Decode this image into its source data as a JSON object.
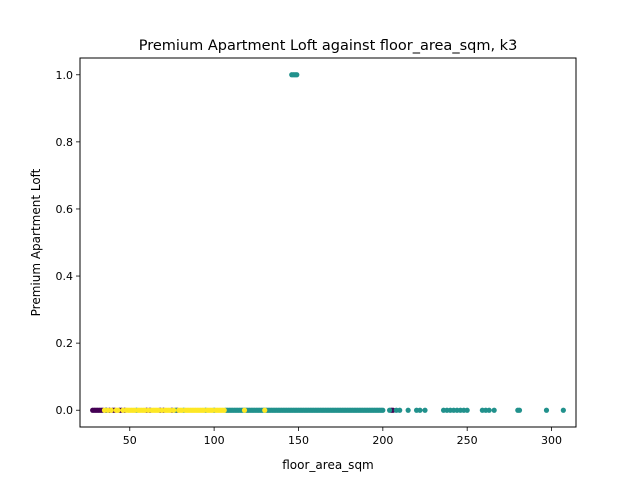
{
  "chart_data": {
    "type": "scatter",
    "title": "Premium Apartment Loft against floor_area_sqm, k3",
    "xlabel": "floor_area_sqm",
    "ylabel": "Premium Apartment Loft",
    "xlim": [
      20.5,
      314.5
    ],
    "ylim": [
      -0.05,
      1.05
    ],
    "x_ticks": [
      50,
      100,
      150,
      200,
      250,
      300
    ],
    "y_ticks": [
      0.0,
      0.2,
      0.4,
      0.6,
      0.8,
      1.0
    ],
    "x_tick_labels": [
      "50",
      "100",
      "150",
      "200",
      "250",
      "300"
    ],
    "y_tick_labels": [
      "0.0",
      "0.2",
      "0.4",
      "0.6",
      "0.8",
      "1.0"
    ],
    "grid": false,
    "legend": "none",
    "clusters": [
      {
        "color": "#440154",
        "points": [
          [
            28,
            0
          ],
          [
            29,
            0
          ],
          [
            30,
            0
          ],
          [
            31,
            0
          ],
          [
            32,
            0
          ],
          [
            33,
            0
          ],
          [
            34,
            0
          ],
          [
            36,
            0
          ],
          [
            38,
            0
          ],
          [
            40,
            0
          ],
          [
            41,
            0
          ],
          [
            44,
            0
          ],
          [
            45,
            0
          ],
          [
            47,
            0
          ],
          [
            60,
            0
          ],
          [
            62,
            0
          ],
          [
            68,
            0
          ],
          [
            70,
            0
          ],
          [
            75,
            0
          ],
          [
            78,
            0
          ],
          [
            205,
            0
          ],
          [
            206,
            0
          ]
        ]
      },
      {
        "color": "#21918c",
        "points": [
          [
            36,
            0
          ],
          [
            54,
            0
          ],
          [
            77,
            0
          ],
          [
            82,
            0
          ],
          [
            95,
            0
          ],
          [
            100,
            0
          ],
          [
            107,
            0
          ],
          [
            108,
            0
          ],
          [
            109,
            0
          ],
          [
            110,
            0
          ],
          [
            111,
            0
          ],
          [
            112,
            0
          ],
          [
            113,
            0
          ],
          [
            114,
            0
          ],
          [
            115,
            0
          ],
          [
            116,
            0
          ],
          [
            117,
            0
          ],
          [
            118,
            0
          ],
          [
            119,
            0
          ],
          [
            120,
            0
          ],
          [
            121,
            0
          ],
          [
            122,
            0
          ],
          [
            123,
            0
          ],
          [
            124,
            0
          ],
          [
            125,
            0
          ],
          [
            126,
            0
          ],
          [
            127,
            0
          ],
          [
            128,
            0
          ],
          [
            129,
            0
          ],
          [
            130,
            0
          ],
          [
            131,
            0
          ],
          [
            132,
            0
          ],
          [
            133,
            0
          ],
          [
            134,
            0
          ],
          [
            135,
            0
          ],
          [
            136,
            0
          ],
          [
            137,
            0
          ],
          [
            138,
            0
          ],
          [
            139,
            0
          ],
          [
            140,
            0
          ],
          [
            141,
            0
          ],
          [
            142,
            0
          ],
          [
            143,
            0
          ],
          [
            144,
            0
          ],
          [
            145,
            0
          ],
          [
            146,
            0
          ],
          [
            147,
            0
          ],
          [
            148,
            0
          ],
          [
            149,
            0
          ],
          [
            150,
            0
          ],
          [
            151,
            0
          ],
          [
            152,
            0
          ],
          [
            153,
            0
          ],
          [
            154,
            0
          ],
          [
            155,
            0
          ],
          [
            156,
            0
          ],
          [
            157,
            0
          ],
          [
            158,
            0
          ],
          [
            159,
            0
          ],
          [
            160,
            0
          ],
          [
            161,
            0
          ],
          [
            162,
            0
          ],
          [
            163,
            0
          ],
          [
            164,
            0
          ],
          [
            165,
            0
          ],
          [
            166,
            0
          ],
          [
            167,
            0
          ],
          [
            168,
            0
          ],
          [
            169,
            0
          ],
          [
            170,
            0
          ],
          [
            171,
            0
          ],
          [
            172,
            0
          ],
          [
            173,
            0
          ],
          [
            174,
            0
          ],
          [
            175,
            0
          ],
          [
            176,
            0
          ],
          [
            177,
            0
          ],
          [
            178,
            0
          ],
          [
            179,
            0
          ],
          [
            180,
            0
          ],
          [
            181,
            0
          ],
          [
            182,
            0
          ],
          [
            183,
            0
          ],
          [
            184,
            0
          ],
          [
            185,
            0
          ],
          [
            186,
            0
          ],
          [
            187,
            0
          ],
          [
            188,
            0
          ],
          [
            189,
            0
          ],
          [
            190,
            0
          ],
          [
            191,
            0
          ],
          [
            192,
            0
          ],
          [
            193,
            0
          ],
          [
            194,
            0
          ],
          [
            195,
            0
          ],
          [
            196,
            0
          ],
          [
            197,
            0
          ],
          [
            198,
            0
          ],
          [
            199,
            0
          ],
          [
            200,
            0
          ],
          [
            204,
            0
          ],
          [
            208,
            0
          ],
          [
            210,
            0
          ],
          [
            215,
            0
          ],
          [
            220,
            0
          ],
          [
            222,
            0
          ],
          [
            225,
            0
          ],
          [
            236,
            0
          ],
          [
            238,
            0
          ],
          [
            240,
            0
          ],
          [
            242,
            0
          ],
          [
            244,
            0
          ],
          [
            246,
            0
          ],
          [
            248,
            0
          ],
          [
            250,
            0
          ],
          [
            259,
            0
          ],
          [
            261,
            0
          ],
          [
            263,
            0
          ],
          [
            266,
            0
          ],
          [
            280,
            0
          ],
          [
            281,
            0
          ],
          [
            297,
            0
          ],
          [
            307,
            0
          ],
          [
            146,
            1
          ],
          [
            147,
            1
          ],
          [
            148,
            1
          ],
          [
            149,
            1
          ]
        ]
      },
      {
        "color": "#fde725",
        "points": [
          [
            35,
            0
          ],
          [
            37,
            0
          ],
          [
            39,
            0
          ],
          [
            42,
            0
          ],
          [
            43,
            0
          ],
          [
            46,
            0
          ],
          [
            48,
            0
          ],
          [
            49,
            0
          ],
          [
            50,
            0
          ],
          [
            51,
            0
          ],
          [
            52,
            0
          ],
          [
            53,
            0
          ],
          [
            55,
            0
          ],
          [
            56,
            0
          ],
          [
            57,
            0
          ],
          [
            58,
            0
          ],
          [
            59,
            0
          ],
          [
            61,
            0
          ],
          [
            63,
            0
          ],
          [
            64,
            0
          ],
          [
            65,
            0
          ],
          [
            66,
            0
          ],
          [
            67,
            0
          ],
          [
            69,
            0
          ],
          [
            71,
            0
          ],
          [
            72,
            0
          ],
          [
            73,
            0
          ],
          [
            74,
            0
          ],
          [
            76,
            0
          ],
          [
            79,
            0
          ],
          [
            80,
            0
          ],
          [
            81,
            0
          ],
          [
            83,
            0
          ],
          [
            84,
            0
          ],
          [
            85,
            0
          ],
          [
            86,
            0
          ],
          [
            87,
            0
          ],
          [
            88,
            0
          ],
          [
            89,
            0
          ],
          [
            90,
            0
          ],
          [
            91,
            0
          ],
          [
            92,
            0
          ],
          [
            93,
            0
          ],
          [
            94,
            0
          ],
          [
            96,
            0
          ],
          [
            97,
            0
          ],
          [
            98,
            0
          ],
          [
            99,
            0
          ],
          [
            101,
            0
          ],
          [
            102,
            0
          ],
          [
            103,
            0
          ],
          [
            104,
            0
          ],
          [
            105,
            0
          ],
          [
            106,
            0
          ],
          [
            118,
            0
          ],
          [
            130,
            0
          ]
        ]
      }
    ]
  }
}
